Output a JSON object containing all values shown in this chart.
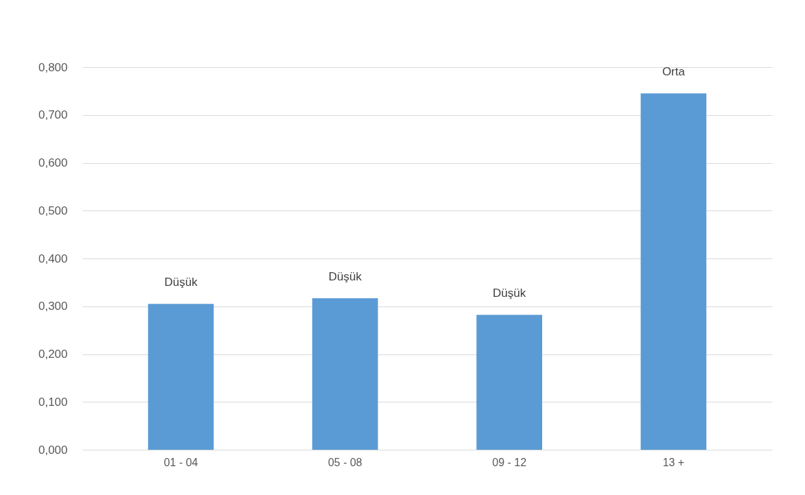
{
  "chart_data": {
    "type": "bar",
    "categories": [
      "01 - 04",
      "05 - 08",
      "09 - 12",
      "13 +"
    ],
    "values": [
      0.305,
      0.317,
      0.282,
      0.745
    ],
    "color": "#5b9bd5",
    "value_labels": [
      "Düşük",
      "Düşük",
      "Düşük",
      "Orta"
    ],
    "ylim": [
      0,
      0.8
    ],
    "yticks": [
      {
        "value": 0,
        "label": "0,000"
      },
      {
        "value": 0.1,
        "label": "0,100"
      },
      {
        "value": 0.2,
        "label": "0,200"
      },
      {
        "value": 0.3,
        "label": "0,300"
      },
      {
        "value": 0.4,
        "label": "0,400"
      },
      {
        "value": 0.5,
        "label": "0,500"
      },
      {
        "value": 0.6,
        "label": "0,600"
      },
      {
        "value": 0.7,
        "label": "0,700"
      },
      {
        "value": 0.8,
        "label": "0,800"
      }
    ],
    "grid": "y"
  }
}
